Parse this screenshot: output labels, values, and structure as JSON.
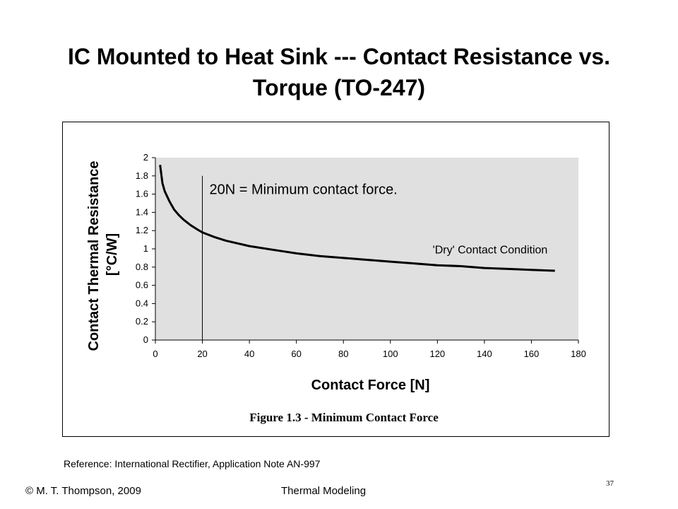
{
  "slide": {
    "title_line1": "IC Mounted to Heat Sink --- Contact Resistance vs.",
    "title_line2": "Torque (TO-247)",
    "reference": "Reference: International Rectifier, Application Note AN-997",
    "footer_left": "© M. T. Thompson, 2009",
    "footer_center": "Thermal Modeling",
    "page_number": "37"
  },
  "chart_data": {
    "type": "line",
    "title": "",
    "caption": "Figure 1.3 - Minimum Contact Force",
    "xlabel": "Contact Force [N]",
    "ylabel_line1": "Contact Thermal Resistance",
    "ylabel_line2": "[°C/W]",
    "xlim": [
      0,
      180
    ],
    "ylim": [
      0,
      2
    ],
    "xticks": [
      0,
      20,
      40,
      60,
      80,
      100,
      120,
      140,
      160,
      180
    ],
    "yticks": [
      0,
      0.2,
      0.4,
      0.6,
      0.8,
      1,
      1.2,
      1.4,
      1.6,
      1.8,
      2
    ],
    "ytick_labels": [
      "0",
      "0.2",
      "0.4",
      "0.6",
      "0.8",
      "1",
      "1.2",
      "1.4",
      "1.6",
      "1.8",
      "2"
    ],
    "grid": false,
    "plot_background": "#e0e0e0",
    "line_color": "#000000",
    "series": [
      {
        "x": [
          2,
          3,
          4,
          6,
          8,
          10,
          12,
          15,
          18,
          20,
          25,
          30,
          40,
          50,
          60,
          70,
          80,
          90,
          100,
          110,
          120,
          130,
          140,
          150,
          160,
          170
        ],
        "y": [
          1.92,
          1.72,
          1.63,
          1.52,
          1.43,
          1.37,
          1.32,
          1.26,
          1.21,
          1.18,
          1.13,
          1.09,
          1.03,
          0.99,
          0.95,
          0.92,
          0.9,
          0.88,
          0.86,
          0.84,
          0.82,
          0.81,
          0.79,
          0.78,
          0.77,
          0.76
        ]
      }
    ],
    "reference_line": {
      "x": 20,
      "y_top": 1.8
    },
    "annotations": [
      {
        "text": "20N = Minimum contact force.",
        "x": 23,
        "y": 1.6
      },
      {
        "text": "'Dry' Contact Condition",
        "x": 118,
        "y": 0.95
      }
    ]
  }
}
